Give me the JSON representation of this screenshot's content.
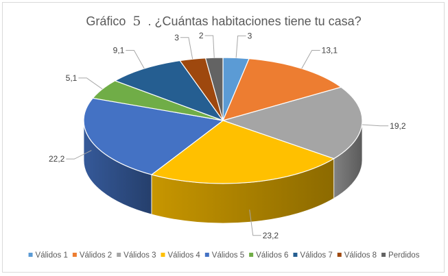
{
  "chart_data": {
    "type": "pie",
    "style": "3d",
    "title_prefix": "Gráfico",
    "title_number": "5",
    "title_suffix": ". ¿Cuántas habitaciones tiene tu casa?",
    "categories": [
      "Válidos 1",
      "Válidos 2",
      "Válidos 3",
      "Válidos 4",
      "Válidos 5",
      "Válidos 6",
      "Válidos 7",
      "Válidos 8",
      "Perdidos"
    ],
    "values": [
      3,
      13.1,
      19.2,
      23.2,
      22.2,
      5.1,
      9.1,
      3,
      2
    ],
    "data_labels": [
      "3",
      "13,1",
      "19,2",
      "23,2",
      "22,2",
      "5,1",
      "9,1",
      "3",
      "2"
    ],
    "colors": [
      "#5b9bd5",
      "#ed7d31",
      "#a5a5a5",
      "#ffc000",
      "#4472c4",
      "#70ad47",
      "#255e91",
      "#9e480e",
      "#636363"
    ],
    "legend_position": "bottom"
  }
}
